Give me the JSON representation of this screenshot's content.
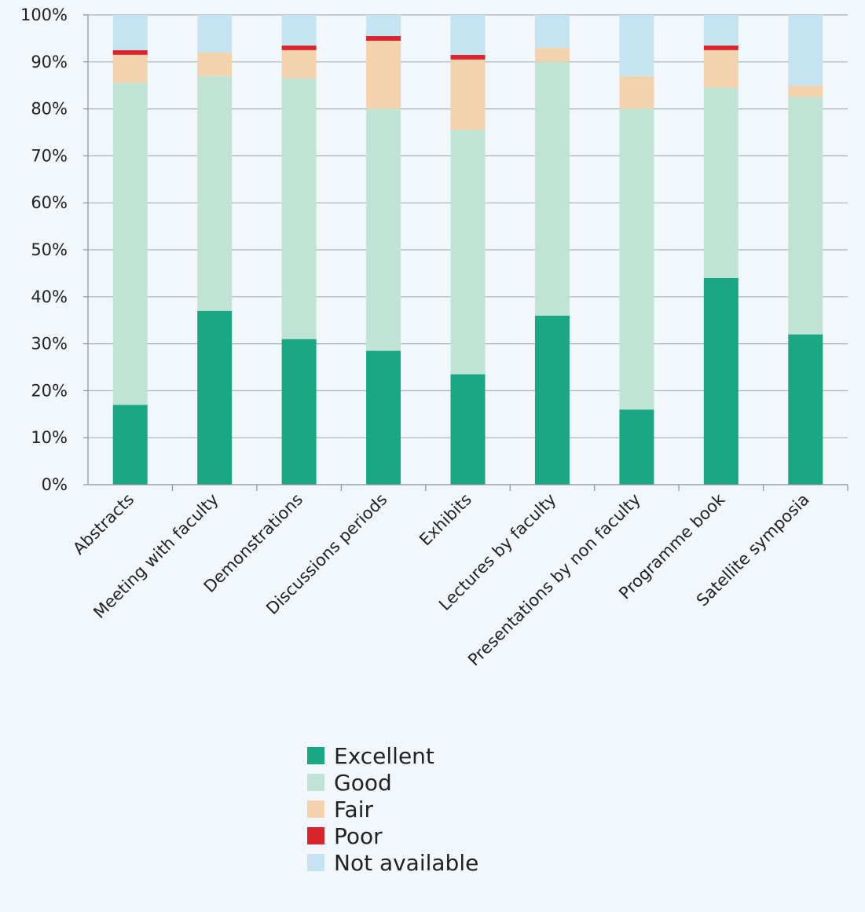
{
  "chart_data": {
    "type": "bar",
    "stacked": true,
    "categories": [
      "Abstracts",
      "Meeting with faculty",
      "Demonstrations",
      "Discussions periods",
      "Exhibits",
      "Lectures by faculty",
      "Presentations by non faculty",
      "Programme book",
      "Satellite symposia"
    ],
    "series": [
      {
        "name": "Excellent",
        "color": "#1aa884",
        "values": [
          17,
          37,
          31,
          28.5,
          23.5,
          36,
          16,
          44,
          32
        ]
      },
      {
        "name": "Good",
        "color": "#bfe4d5",
        "values": [
          68.5,
          50,
          55.5,
          51.5,
          52,
          54,
          64,
          40.5,
          50.5
        ]
      },
      {
        "name": "Fair",
        "color": "#f2d3ae",
        "values": [
          6,
          5,
          6,
          14.5,
          15,
          3,
          7,
          8,
          2.5
        ]
      },
      {
        "name": "Poor",
        "color": "#d9262e",
        "values": [
          1,
          0,
          1,
          1,
          1,
          0,
          0,
          1,
          0
        ]
      },
      {
        "name": "Not available",
        "color": "#c5e4f1",
        "values": [
          7.5,
          8,
          6.5,
          4.5,
          8.5,
          7,
          13,
          6.5,
          15
        ]
      }
    ],
    "yticks": [
      "0%",
      "10%",
      "20%",
      "30%",
      "40%",
      "50%",
      "60%",
      "70%",
      "80%",
      "90%",
      "100%"
    ],
    "ylim": [
      0,
      100
    ],
    "grid": true,
    "legend_position": "bottom-center",
    "title": "",
    "xlabel": "",
    "ylabel": ""
  }
}
